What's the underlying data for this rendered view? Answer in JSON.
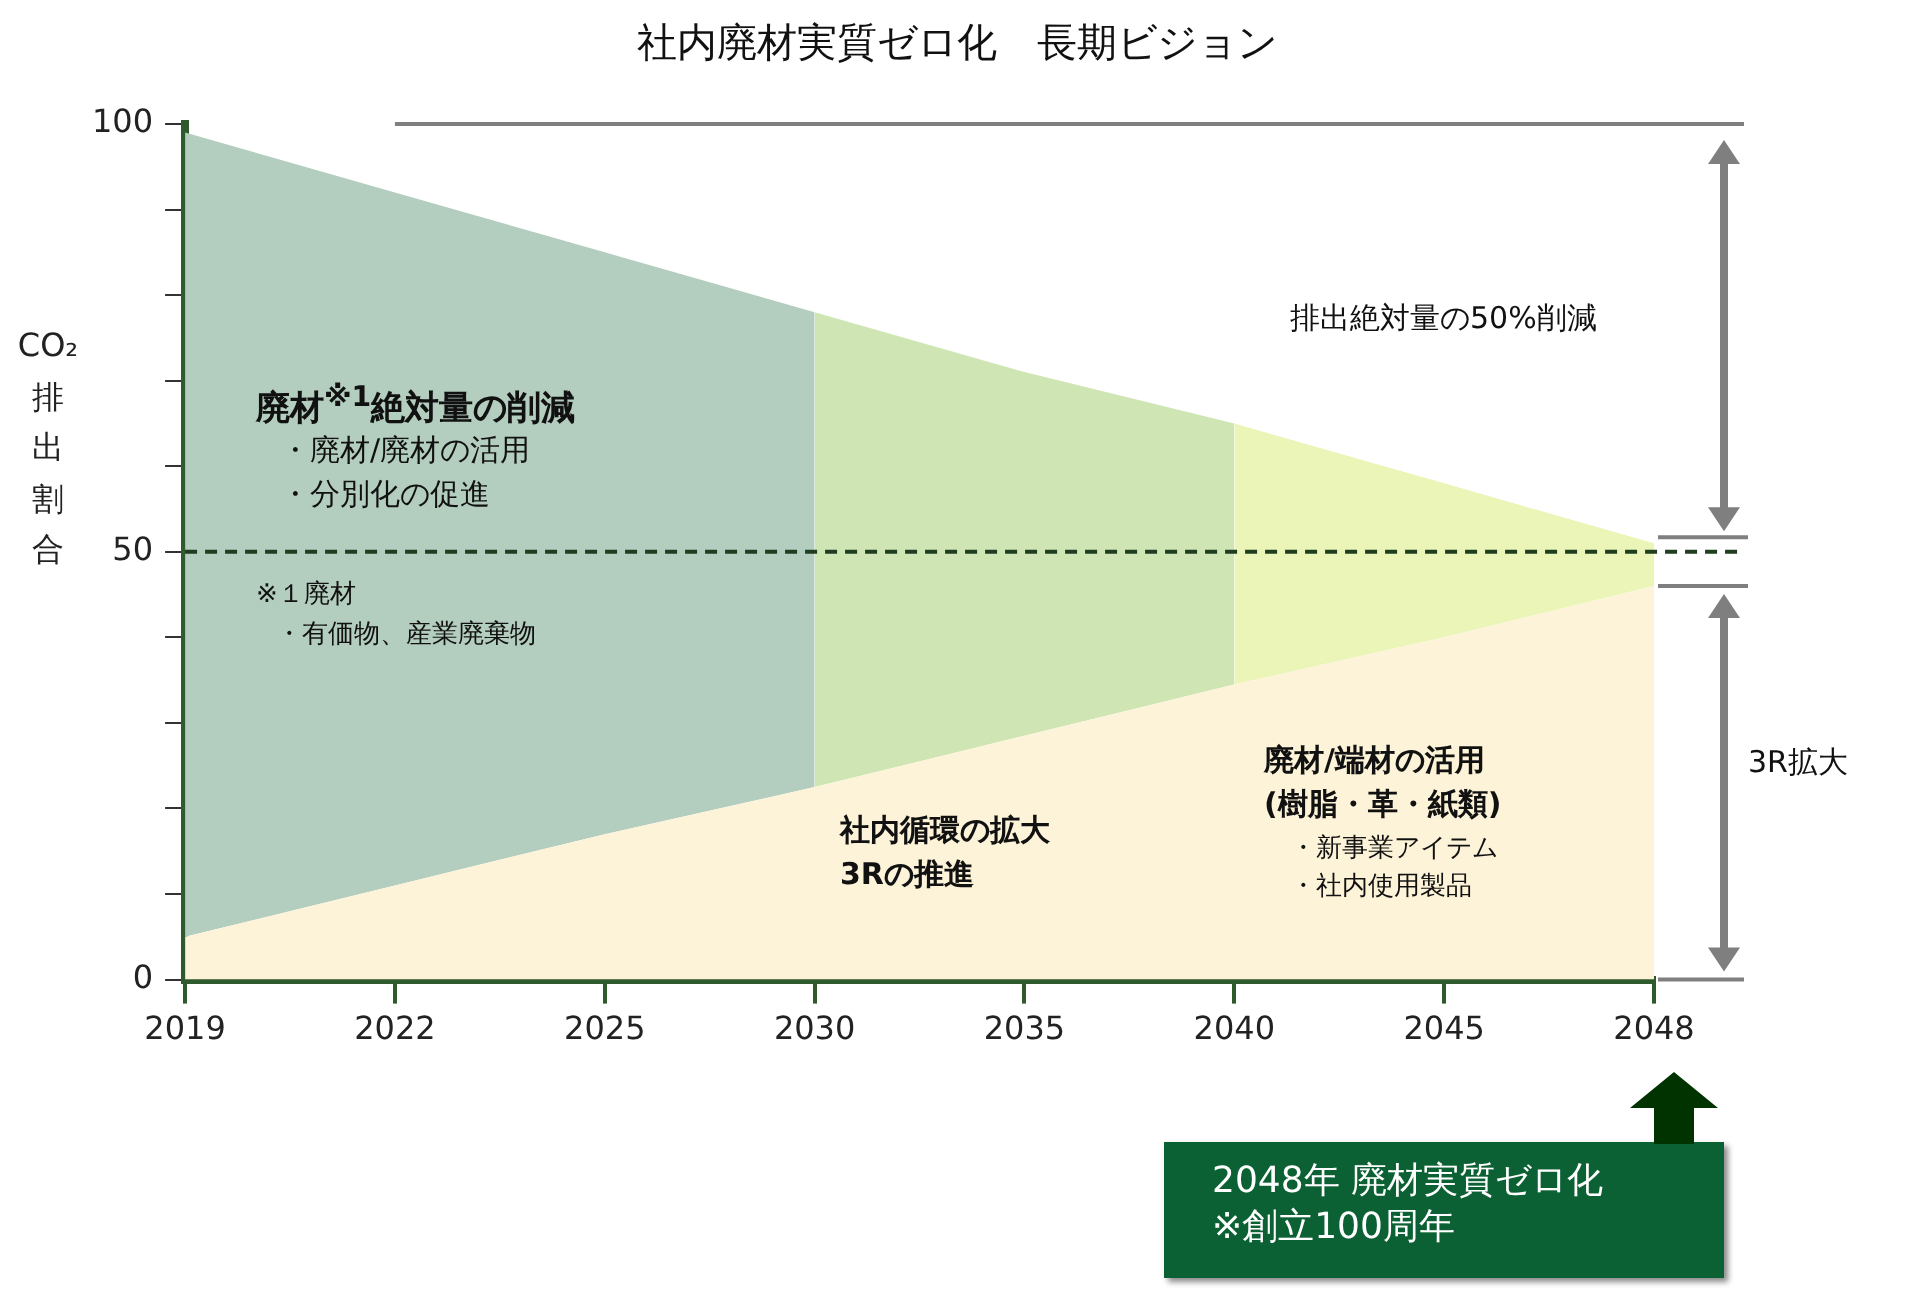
{
  "chart_data": {
    "type": "area",
    "title": "社内廃材実質ゼロ化　長期ビジョン",
    "ylabel": "CO₂排出割合",
    "categories": [
      "2019",
      "2022",
      "2025",
      "2030",
      "2035",
      "2040",
      "2045",
      "2048"
    ],
    "series": [
      {
        "color": "#fdf3d8",
        "values": [
          5,
          11,
          17,
          22.5,
          28.5,
          34.5,
          40,
          46
        ]
      },
      {
        "color": "#b3cdbf",
        "values": [
          99,
          92,
          85,
          78,
          null,
          null,
          null,
          null
        ]
      },
      {
        "color": "#cfe6b4",
        "values": [
          null,
          null,
          null,
          78,
          71,
          65,
          null,
          null
        ]
      },
      {
        "color": "#ebf5b8",
        "values": [
          null,
          null,
          null,
          null,
          null,
          65,
          58,
          51
        ]
      }
    ],
    "ylim": [
      0,
      100
    ],
    "yticks": [
      0,
      {
        "value": 10,
        "label": null
      },
      {
        "value": 20,
        "label": null
      },
      {
        "value": 30,
        "label": null
      },
      {
        "value": 40,
        "label": null
      },
      50,
      {
        "value": 60,
        "label": null
      },
      {
        "value": 70,
        "label": null
      },
      {
        "value": 80,
        "label": null
      },
      {
        "value": 90,
        "label": null
      },
      100
    ],
    "ref_lines": [
      {
        "axis": "y",
        "value": 50,
        "color": "#1f3d1f",
        "line_style": "dashed"
      },
      {
        "axis": "y",
        "value": 100,
        "color": "#7f7f7f",
        "line_style": "solid"
      }
    ],
    "annotations": [
      "廃材$^{※1}$絶対量の削減",
      "・廃材/廃材の活用",
      "・分別化の促進",
      "※１廃材",
      "・有価物、産業廃棄物",
      "社内循環の拡大",
      "3Rの推進",
      "廃材/端材の活用",
      "(樹脂・革・紙類)",
      "・新事業アイテム",
      "・社内使用製品",
      "排出絶対量の50%削減",
      "3R拡大",
      "2048年 廃材実質ゼロ化",
      "※創立100周年"
    ],
    "grid": false,
    "legend": false,
    "marker": "none"
  }
}
